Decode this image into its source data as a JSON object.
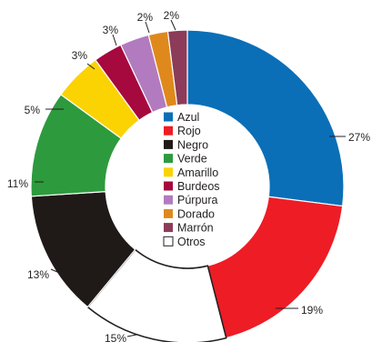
{
  "chart_data": {
    "type": "pie",
    "donut": true,
    "legend_position": "center",
    "categories": [
      "Azul",
      "Rojo",
      "Negro",
      "Verde",
      "Amarillo",
      "Burdeos",
      "Púrpura",
      "Dorado",
      "Marrón",
      "Otros"
    ],
    "slice_order_clockwise_from_top": [
      "Azul",
      "Rojo",
      "Otros",
      "Negro",
      "Verde",
      "Amarillo",
      "Burdeos",
      "Púrpura",
      "Dorado",
      "Marrón"
    ],
    "values": [
      27,
      19,
      13,
      11,
      5,
      3,
      3,
      2,
      2,
      15
    ],
    "labels": [
      "27%",
      "19%",
      "13%",
      "11%",
      "5%",
      "3%",
      "3%",
      "2%",
      "2%",
      "15%"
    ],
    "colors": [
      "#0a6fb7",
      "#ee1c25",
      "#1f1a17",
      "#2e9a3e",
      "#fbd303",
      "#a6093d",
      "#b27bbf",
      "#df891d",
      "#8c3b59",
      "#ffffff"
    ]
  }
}
